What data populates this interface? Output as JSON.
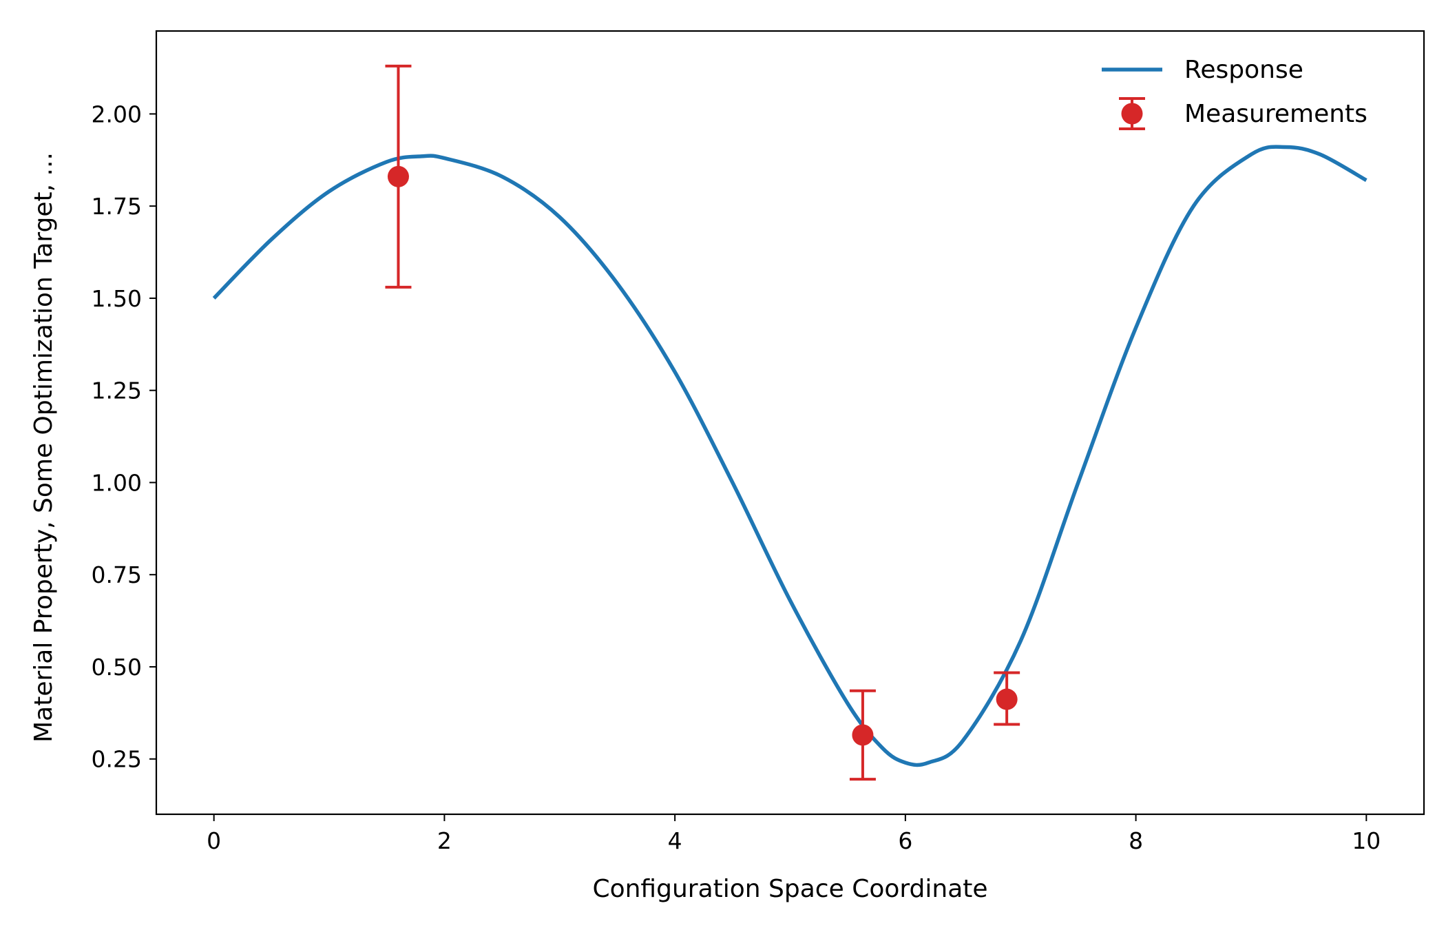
{
  "chart_data": {
    "type": "line",
    "title": "",
    "xlabel": "Configuration Space Coordinate",
    "ylabel": "Material Property, Some Optimization Target, ...",
    "xlim": [
      -0.5,
      10.5
    ],
    "ylim": [
      0.1,
      2.225
    ],
    "x_ticks": [
      0,
      2,
      4,
      6,
      8,
      10
    ],
    "x_tick_labels": [
      "0",
      "2",
      "4",
      "6",
      "8",
      "10"
    ],
    "y_ticks": [
      0.25,
      0.5,
      0.75,
      1.0,
      1.25,
      1.5,
      1.75,
      2.0
    ],
    "y_tick_labels": [
      "0.25",
      "0.50",
      "0.75",
      "1.00",
      "1.25",
      "1.50",
      "1.75",
      "2.00"
    ],
    "grid": false,
    "legend_position": "top-right",
    "series": [
      {
        "name": "Response",
        "kind": "line",
        "color": "#1f77b4",
        "x": [
          0,
          0.5,
          1.0,
          1.5,
          1.8,
          2.0,
          2.5,
          3.0,
          3.5,
          4.0,
          4.5,
          5.0,
          5.5,
          5.8,
          6.0,
          6.2,
          6.5,
          7.0,
          7.5,
          8.0,
          8.5,
          9.0,
          9.3,
          9.6,
          10.0
        ],
        "y": [
          1.5,
          1.66,
          1.79,
          1.87,
          1.885,
          1.88,
          1.83,
          1.72,
          1.54,
          1.3,
          1.0,
          0.68,
          0.4,
          0.28,
          0.24,
          0.24,
          0.3,
          0.57,
          1.0,
          1.42,
          1.75,
          1.89,
          1.91,
          1.89,
          1.82
        ]
      },
      {
        "name": "Measurements",
        "kind": "errorbar",
        "color": "#d62728",
        "x": [
          1.6,
          5.63,
          6.88
        ],
        "y": [
          1.83,
          0.315,
          0.412
        ],
        "yerr_lower": [
          0.3,
          0.12,
          0.068
        ],
        "yerr_upper": [
          0.3,
          0.12,
          0.072
        ]
      }
    ]
  }
}
